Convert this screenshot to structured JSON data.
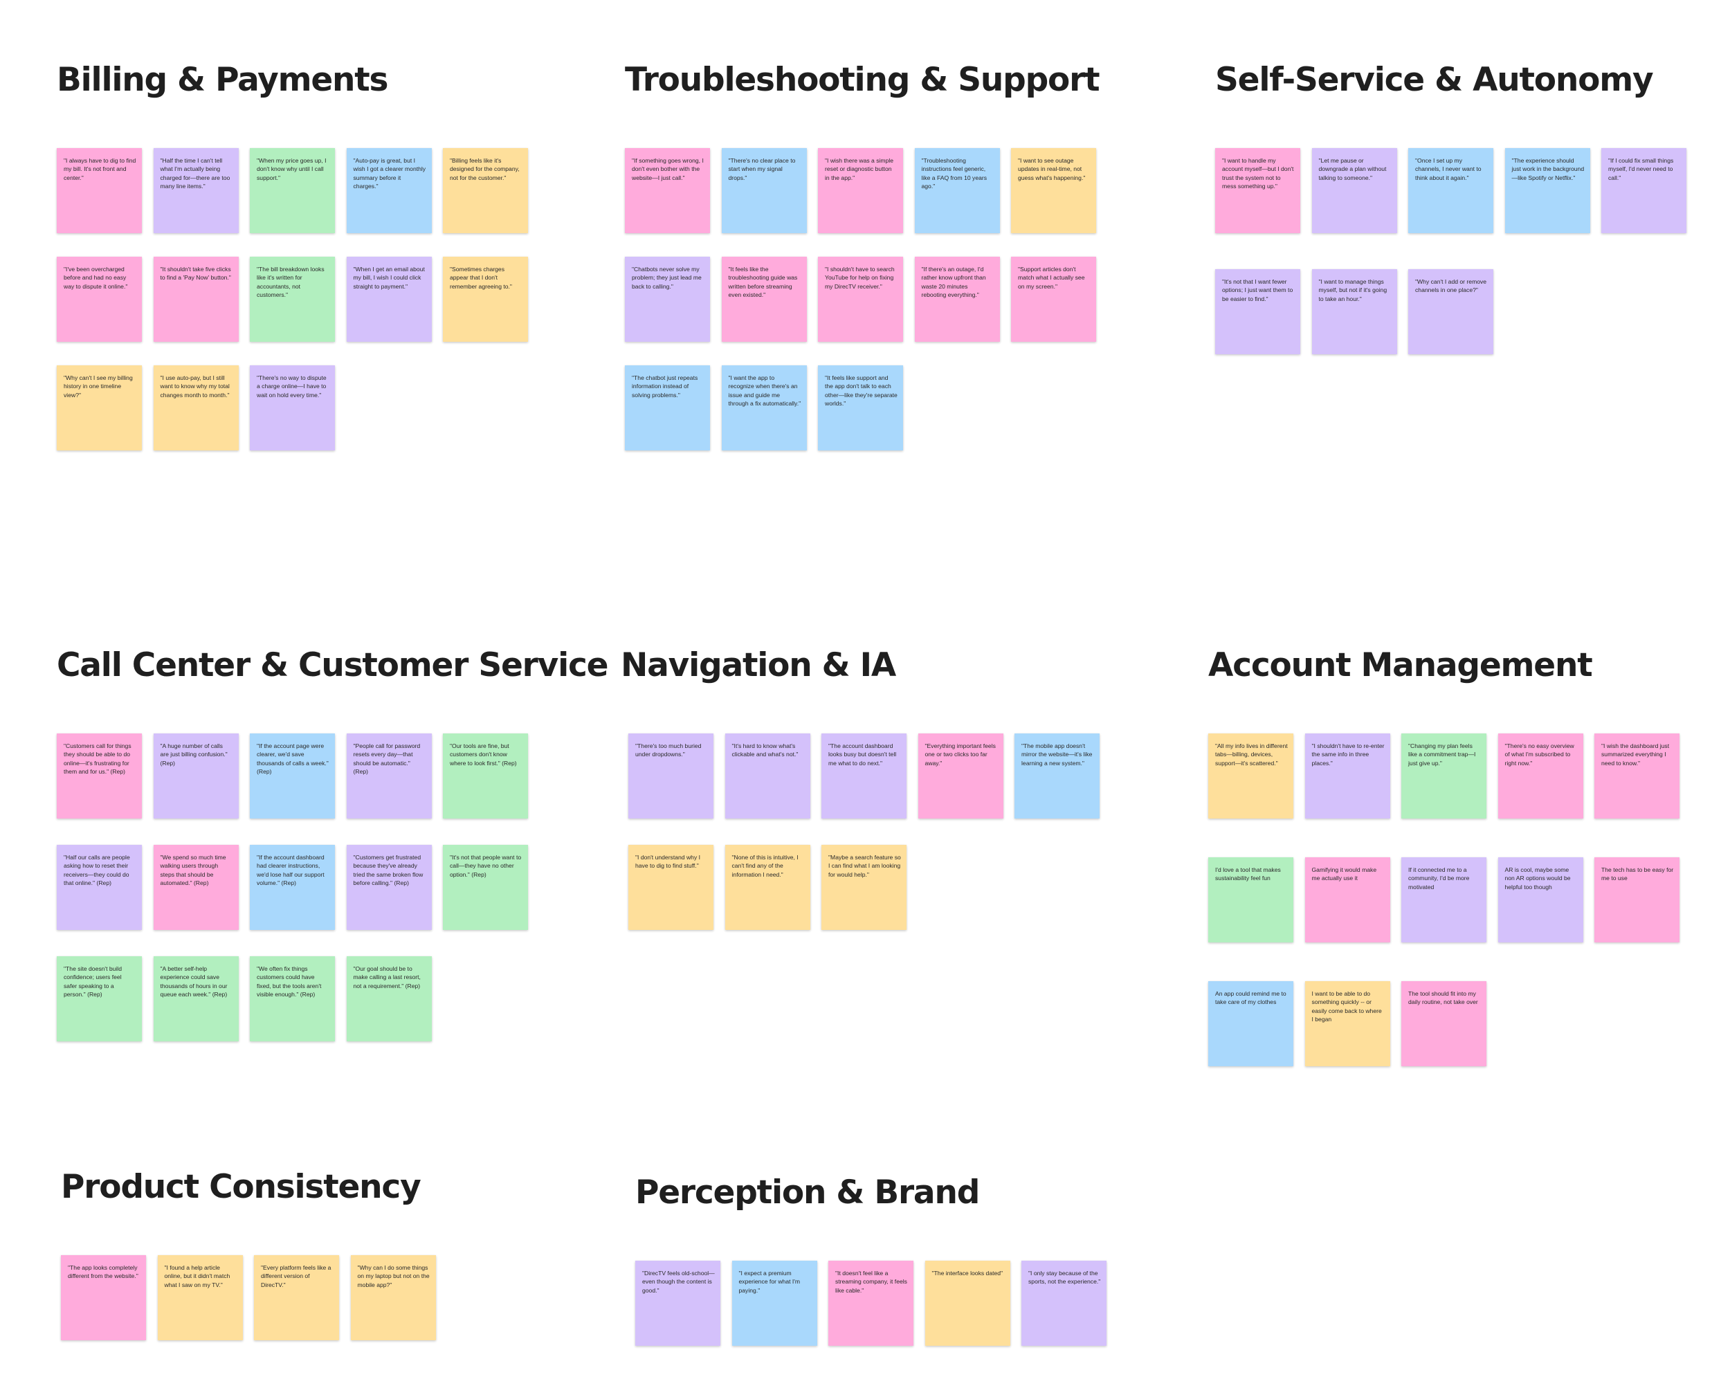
{
  "colors": {
    "pink": "#ffabdc",
    "purple": "#d4c1fb",
    "green": "#b2efbf",
    "blue": "#a9d8fc",
    "yellow": "#fedf9b"
  },
  "sections": [
    {
      "title": "Billing & Payments",
      "notes": [
        {
          "color": "pink",
          "text": "\"I always have to dig to find my bill. It's not front and center.\""
        },
        {
          "color": "purple",
          "text": "\"Half the time I can't tell what I'm actually being charged for—there are too many line items.\""
        },
        {
          "color": "green",
          "text": "\"When my price goes up, I don't know why until I call support.\""
        },
        {
          "color": "blue",
          "text": "\"Auto-pay is great, but I wish I got a clearer monthly summary before it charges.\""
        },
        {
          "color": "yellow",
          "text": "\"Billing feels like it's designed for the company, not for the customer.\""
        },
        {
          "color": "pink",
          "text": "\"I've been overcharged before and had no easy way to dispute it online.\""
        },
        {
          "color": "pink",
          "text": "\"It shouldn't take five clicks to find a 'Pay Now' button.\""
        },
        {
          "color": "green",
          "text": "\"The bill breakdown looks like it's written for accountants, not customers.\""
        },
        {
          "color": "purple",
          "text": "\"When I get an email about my bill, I wish I could click straight to payment.\""
        },
        {
          "color": "yellow",
          "text": "\"Sometimes charges appear that I don't remember agreeing to.\""
        },
        {
          "color": "yellow",
          "text": "\"Why can't I see my billing history in one timeline view?\""
        },
        {
          "color": "yellow",
          "text": "\"I use auto-pay, but I still want to know why my total changes month to month.\""
        },
        {
          "color": "purple",
          "text": "\"There's no way to dispute a charge online—I have to wait on hold every time.\""
        }
      ]
    },
    {
      "title": "Troubleshooting & Support",
      "notes": [
        {
          "color": "pink",
          "text": "\"If something goes wrong, I don't even bother with the website—I just call.\""
        },
        {
          "color": "blue",
          "text": "\"There's no clear place to start when my signal drops.\""
        },
        {
          "color": "pink",
          "text": "\"I wish there was a simple reset or diagnostic button in the app.\""
        },
        {
          "color": "blue",
          "text": "\"Troubleshooting instructions feel generic, like a FAQ from 10 years ago.\""
        },
        {
          "color": "yellow",
          "text": "\"I want to see outage updates in real-time, not guess what's happening.\""
        },
        {
          "color": "purple",
          "text": "\"Chatbots never solve my problem; they just lead me back to calling.\""
        },
        {
          "color": "pink",
          "text": "\"It feels like the troubleshooting guide was written before streaming even existed.\""
        },
        {
          "color": "pink",
          "text": "\"I shouldn't have to search YouTube for help on fixing my DirecTV receiver.\""
        },
        {
          "color": "pink",
          "text": "\"If there's an outage, I'd rather know upfront than waste 20 minutes rebooting everything.\""
        },
        {
          "color": "pink",
          "text": "\"Support articles don't match what I actually see on my screen.\""
        },
        {
          "color": "blue",
          "text": "\"The chatbot just repeats information instead of solving problems.\""
        },
        {
          "color": "blue",
          "text": "\"I want the app to recognize when there's an issue and guide me through a fix automatically.\""
        },
        {
          "color": "blue",
          "text": "\"It feels like support and the app don't talk to each other—like they're separate worlds.\""
        }
      ]
    },
    {
      "title": "Self-Service & Autonomy",
      "notes": [
        {
          "color": "pink",
          "text": "\"I want to handle my account myself—but I don't trust the system not to mess something up.\""
        },
        {
          "color": "purple",
          "text": "\"Let me pause or downgrade a plan without talking to someone.\""
        },
        {
          "color": "blue",
          "text": "\"Once I set up my channels, I never want to think about it again.\""
        },
        {
          "color": "blue",
          "text": "\"The experience should just work in the background—like Spotify or Netflix.\""
        },
        {
          "color": "purple",
          "text": "\"If I could fix small things myself, I'd never need to call.\""
        },
        {
          "color": "purple",
          "text": "\"It's not that I want fewer options; I just want them to be easier to find.\""
        },
        {
          "color": "purple",
          "text": "\"I want to manage things myself, but not if it's going to take an hour.\""
        },
        {
          "color": "purple",
          "text": "\"Why can't I add or remove channels in one place?\""
        }
      ]
    },
    {
      "title": "Call Center & Customer Service",
      "notes": [
        {
          "color": "pink",
          "text": "\"Customers call for things they should be able to do online—it's frustrating for them and for us.\" (Rep)"
        },
        {
          "color": "purple",
          "text": "\"A huge number of calls are just billing confusion.\" (Rep)"
        },
        {
          "color": "blue",
          "text": "\"If the account page were clearer, we'd save thousands of calls a week.\" (Rep)"
        },
        {
          "color": "purple",
          "text": "\"People call for password resets every day—that should be automatic.\" (Rep)"
        },
        {
          "color": "green",
          "text": "\"Our tools are fine, but customers don't know where to look first.\" (Rep)"
        },
        {
          "color": "purple",
          "text": "\"Half our calls are people asking how to reset their receivers—they could do that online.\" (Rep)"
        },
        {
          "color": "pink",
          "text": "\"We spend so much time walking users through steps that should be automated.\" (Rep)"
        },
        {
          "color": "blue",
          "text": "\"If the account dashboard had clearer instructions, we'd lose half our support volume.\" (Rep)"
        },
        {
          "color": "purple",
          "text": "\"Customers get frustrated because they've already tried the same broken flow before calling.\" (Rep)"
        },
        {
          "color": "green",
          "text": "\"It's not that people want to call—they have no other option.\" (Rep)"
        },
        {
          "color": "green",
          "text": "\"The site doesn't build confidence; users feel safer speaking to a person.\" (Rep)"
        },
        {
          "color": "green",
          "text": "\"A better self-help experience could save thousands of hours in our queue each week.\" (Rep)"
        },
        {
          "color": "green",
          "text": "\"We often fix things customers could have fixed, but the tools aren't visible enough.\" (Rep)"
        },
        {
          "color": "green",
          "text": "\"Our goal should be to make calling a last resort, not a requirement.\" (Rep)"
        }
      ]
    },
    {
      "title": "Navigation & IA",
      "notes": [
        {
          "color": "purple",
          "text": "\"There's too much buried under dropdowns.\""
        },
        {
          "color": "purple",
          "text": "\"It's hard to know what's clickable and what's not.\""
        },
        {
          "color": "purple",
          "text": "\"The account dashboard looks busy but doesn't tell me what to do next.\""
        },
        {
          "color": "pink",
          "text": "\"Everything important feels one or two clicks too far away.\""
        },
        {
          "color": "blue",
          "text": "\"The mobile app doesn't mirror the website—it's like learning a new system.\""
        },
        {
          "color": "yellow",
          "text": "\"I don't understand why I have to dig to find stuff.\""
        },
        {
          "color": "yellow",
          "text": "\"None of this is intuitive, I can't find any of the information I need.\""
        },
        {
          "color": "yellow",
          "text": "\"Maybe a search feature so I can find what I am looking for would help.\""
        }
      ]
    },
    {
      "title": "Account Management",
      "notes": [
        {
          "color": "yellow",
          "text": "\"All my info lives in different tabs—billing, devices, support—it's scattered.\""
        },
        {
          "color": "purple",
          "text": "\"I shouldn't have to re-enter the same info in three places.\""
        },
        {
          "color": "green",
          "text": "\"Changing my plan feels like a commitment trap—I just give up.\""
        },
        {
          "color": "pink",
          "text": "\"There's no easy overview of what I'm subscribed to right now.\""
        },
        {
          "color": "pink",
          "text": "\"I wish the dashboard just summarized everything I need to know.\""
        },
        {
          "color": "green",
          "text": "I'd love a tool that makes sustainability feel fun"
        },
        {
          "color": "pink",
          "text": "Gamifying it would make me actually use it"
        },
        {
          "color": "purple",
          "text": "If it connected me to a community, I'd be more motivated"
        },
        {
          "color": "purple",
          "text": "AR is cool, maybe some non AR options would be helpful too though"
        },
        {
          "color": "pink",
          "text": "The tech has to be easy for me to use"
        },
        {
          "color": "blue",
          "text": "An app could remind me to take care of my clothes"
        },
        {
          "color": "yellow",
          "text": "I want to be able to do something quickly -- or easily come back to where I began"
        },
        {
          "color": "pink",
          "text": "The tool should fit into my daily routine, not take over"
        }
      ]
    },
    {
      "title": "Product Consistency",
      "notes": [
        {
          "color": "pink",
          "text": "\"The app looks completely different from the website.\""
        },
        {
          "color": "yellow",
          "text": "\"I found a help article online, but it didn't match what I saw on my TV.\""
        },
        {
          "color": "yellow",
          "text": "\"Every platform feels like a different version of DirecTV.\""
        },
        {
          "color": "yellow",
          "text": "\"Why can I do some things on my laptop but not on the mobile app?\""
        }
      ]
    },
    {
      "title": "Perception & Brand",
      "notes": [
        {
          "color": "purple",
          "text": "\"DirecTV feels old-school—even though the content is good.\""
        },
        {
          "color": "blue",
          "text": "\"I expect a premium experience for what I'm paying.\""
        },
        {
          "color": "pink",
          "text": "\"It doesn't feel like a streaming company, it feels like cable.\""
        },
        {
          "color": "yellow",
          "text": "\"The interface looks dated\""
        },
        {
          "color": "purple",
          "text": "\"I only stay because of the sports, not the experience.\""
        }
      ]
    }
  ]
}
